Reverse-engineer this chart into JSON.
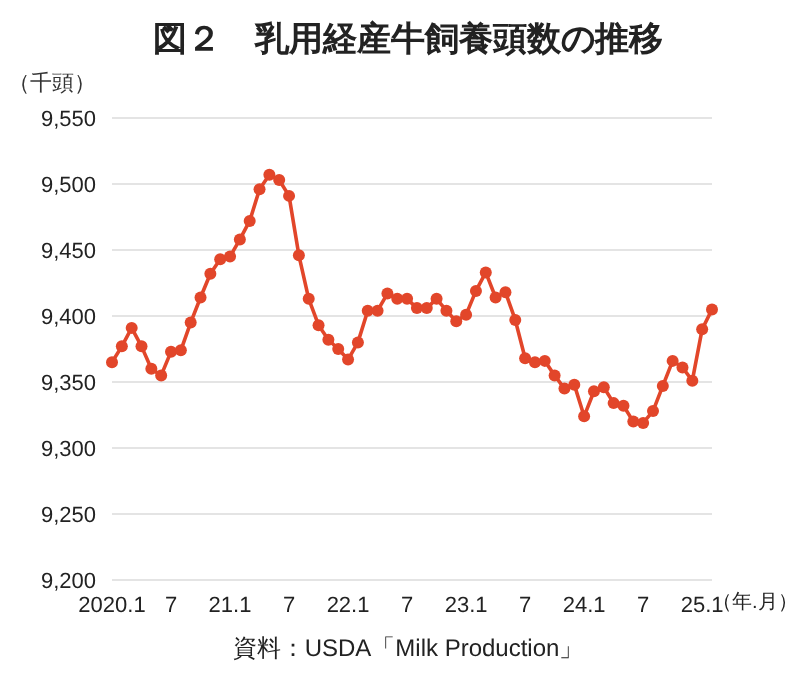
{
  "chart_data": {
    "type": "line",
    "title": "図２　乳用経産牛飼養頭数の推移",
    "ylabel": "（千頭）",
    "xlabel": "（年.月）",
    "annotations": [
      "資料：USDA「Milk Production」"
    ],
    "categories": [
      "2020.1",
      null,
      null,
      null,
      null,
      null,
      "7",
      null,
      null,
      null,
      null,
      null,
      "21.1",
      null,
      null,
      null,
      null,
      null,
      "7",
      null,
      null,
      null,
      null,
      null,
      "22.1",
      null,
      null,
      null,
      null,
      null,
      "7",
      null,
      null,
      null,
      null,
      null,
      "23.1",
      null,
      null,
      null,
      null,
      null,
      "7",
      null,
      null,
      null,
      null,
      null,
      "24.1",
      null,
      null,
      null,
      null,
      null,
      "7",
      null,
      null,
      null,
      null,
      null,
      "25.1",
      null
    ],
    "series": [
      {
        "color": "#e2462a",
        "values": [
          9365,
          9377,
          9391,
          9377,
          9360,
          9355,
          9373,
          9374,
          9395,
          9414,
          9432,
          9443,
          9445,
          9458,
          9472,
          9496,
          9507,
          9503,
          9491,
          9446,
          9413,
          9393,
          9382,
          9375,
          9367,
          9380,
          9404,
          9404,
          9417,
          9413,
          9413,
          9406,
          9406,
          9413,
          9404,
          9396,
          9401,
          9419,
          9433,
          9414,
          9418,
          9397,
          9368,
          9365,
          9366,
          9355,
          9345,
          9348,
          9324,
          9343,
          9346,
          9334,
          9332,
          9320,
          9319,
          9328,
          9347,
          9366,
          9361,
          9351,
          9390,
          9405
        ]
      }
    ],
    "ylim": [
      9200,
      9550
    ],
    "yticks": [
      {
        "value": 9200,
        "label": "9,200"
      },
      {
        "value": 9250,
        "label": "9,250"
      },
      {
        "value": 9300,
        "label": "9,300"
      },
      {
        "value": 9350,
        "label": "9,350"
      },
      {
        "value": 9400,
        "label": "9,400"
      },
      {
        "value": 9450,
        "label": "9,450"
      },
      {
        "value": 9500,
        "label": "9,500"
      },
      {
        "value": 9550,
        "label": "9,550"
      }
    ],
    "grid": "y",
    "legend": false,
    "marker": "circle",
    "line_style": "solid"
  }
}
